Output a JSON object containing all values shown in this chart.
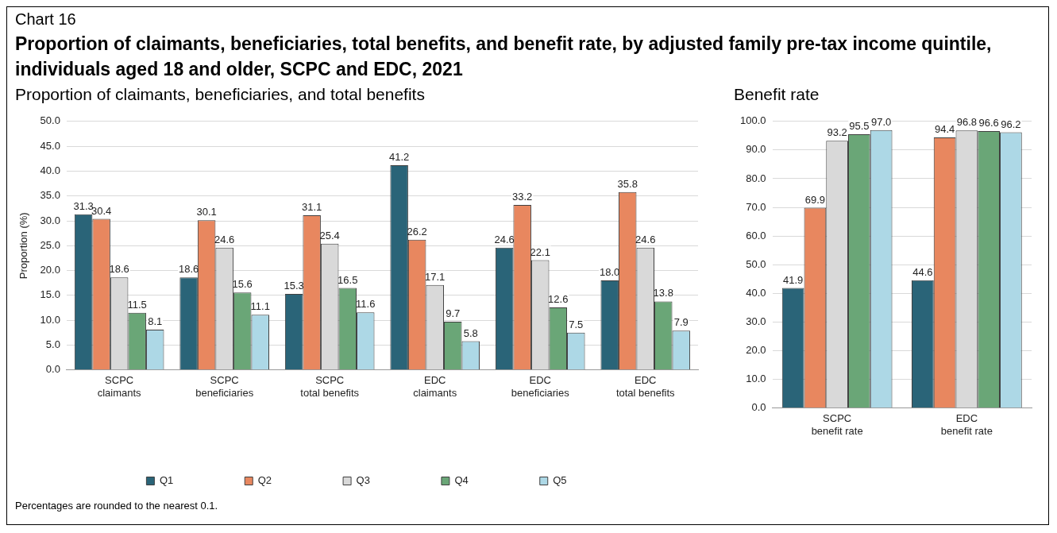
{
  "chart_data": [
    {
      "type": "bar",
      "title": "Proportion of claimants, beneficiaries, total benefits, and benefit rate, by adjusted family pre-tax income quintile, individuals aged 18 and older, SCPC and EDC, 2021",
      "subtitle": "Proportion of claimants, beneficiaries, and total benefits",
      "annotations": [
        "Chart 16",
        "Percentages are rounded to the nearest 0.1."
      ],
      "ylabel": "Proportion (%)",
      "categories": [
        "SCPC claimants",
        "SCPC beneficiaries",
        "SCPC total benefits",
        "EDC claimants",
        "EDC beneficiaries",
        "EDC total benefits"
      ],
      "series": [
        {
          "name": "Q1",
          "color": "#2a6478",
          "values": [
            31.3,
            18.6,
            15.3,
            41.2,
            24.6,
            18.0
          ],
          "value_labels": [
            "31.3",
            "18.6",
            "15.3",
            "41.2",
            "24.6",
            "18.0"
          ]
        },
        {
          "name": "Q2",
          "color": "#e8875f",
          "values": [
            30.4,
            30.1,
            31.1,
            26.2,
            33.2,
            35.8
          ]
        },
        {
          "name": "Q3",
          "color": "#d9d9d9",
          "values": [
            18.6,
            24.6,
            25.4,
            17.1,
            22.1,
            24.6
          ]
        },
        {
          "name": "Q4",
          "color": "#6aa677",
          "values": [
            11.5,
            15.6,
            16.5,
            9.7,
            12.6,
            13.8
          ]
        },
        {
          "name": "Q5",
          "color": "#add8e6",
          "values": [
            8.1,
            11.1,
            11.6,
            5.8,
            7.5,
            7.9
          ]
        }
      ],
      "ylim": [
        0,
        50
      ],
      "yticks": [
        {
          "value": 0,
          "label": "0.0"
        },
        {
          "value": 5,
          "label": "5.0"
        },
        {
          "value": 10,
          "label": "10.0"
        },
        {
          "value": 15,
          "label": "15.0"
        },
        {
          "value": 20,
          "label": "20.0"
        },
        {
          "value": 25,
          "label": "25.0"
        },
        {
          "value": 30,
          "label": "30.0"
        },
        {
          "value": 35,
          "label": "35.0"
        },
        {
          "value": 40,
          "label": "40.0"
        },
        {
          "value": 45,
          "label": "45.0"
        },
        {
          "value": 50,
          "label": "50.0"
        }
      ],
      "grid": "y",
      "legend": "bottom",
      "data_labels": true
    },
    {
      "type": "bar",
      "title": "Benefit rate",
      "categories": [
        "SCPC benefit rate",
        "EDC benefit rate"
      ],
      "series": [
        {
          "color": "#2a6478",
          "values": [
            41.9,
            44.6
          ]
        },
        {
          "color": "#e8875f",
          "values": [
            69.9,
            94.4
          ]
        },
        {
          "color": "#d9d9d9",
          "values": [
            93.2,
            96.8
          ]
        },
        {
          "color": "#6aa677",
          "values": [
            95.5,
            96.6
          ]
        },
        {
          "color": "#add8e6",
          "values": [
            97.0,
            96.2
          ],
          "value_labels": [
            "97.0",
            "96.2"
          ]
        }
      ],
      "ylim": [
        0,
        100
      ],
      "yticks": [
        {
          "value": 0,
          "label": "0.0"
        },
        {
          "value": 10,
          "label": "10.0"
        },
        {
          "value": 20,
          "label": "20.0"
        },
        {
          "value": 30,
          "label": "30.0"
        },
        {
          "value": 40,
          "label": "40.0"
        },
        {
          "value": 50,
          "label": "50.0"
        },
        {
          "value": 60,
          "label": "60.0"
        },
        {
          "value": 70,
          "label": "70.0"
        },
        {
          "value": 80,
          "label": "80.0"
        },
        {
          "value": 90,
          "label": "90.0"
        },
        {
          "value": 100,
          "label": "100.0"
        }
      ],
      "grid": "y",
      "data_labels": true
    }
  ]
}
